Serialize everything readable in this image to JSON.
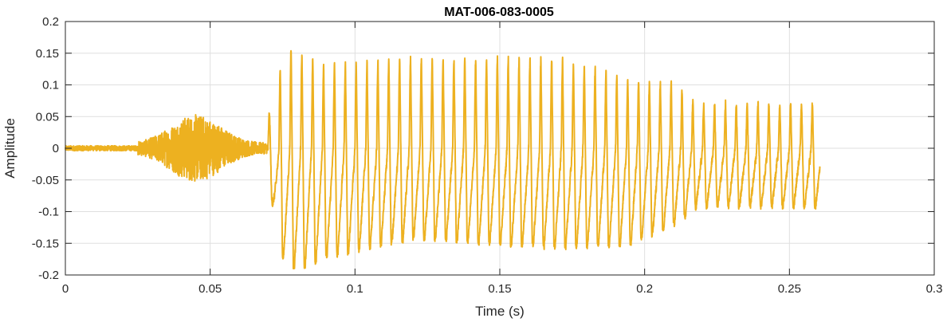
{
  "chart_data": {
    "type": "line",
    "title": "MAT-006-083-0005",
    "xlabel": "Time (s)",
    "ylabel": "Amplitude",
    "xlim": [
      0,
      0.3
    ],
    "ylim": [
      -0.2,
      0.2
    ],
    "xticks": [
      0,
      0.05,
      0.1,
      0.15,
      0.2,
      0.25,
      0.3
    ],
    "xtick_labels": [
      "0",
      "0.05",
      "0.1",
      "0.15",
      "0.2",
      "0.25",
      "0.3"
    ],
    "yticks": [
      -0.2,
      -0.15,
      -0.1,
      -0.05,
      0,
      0.05,
      0.1,
      0.15,
      0.2
    ],
    "ytick_labels": [
      "-0.2",
      "-0.15",
      "-0.1",
      "-0.05",
      "0",
      "0.05",
      "0.1",
      "0.15",
      "0.2"
    ],
    "grid": true,
    "line_color": "#EDB120",
    "series": [
      {
        "signal_end_time": 0.2605,
        "segments": [
          {
            "start": 0.0,
            "end": 0.025,
            "kind": "noise",
            "amp": 0.004
          },
          {
            "start": 0.025,
            "end": 0.07,
            "kind": "noise_burst",
            "amp": 0.035,
            "peak_time": 0.045
          },
          {
            "start": 0.07,
            "end": 0.2605,
            "kind": "voiced",
            "period": 0.00375,
            "envelope_top": [
              [
                0.07,
                0.05
              ],
              [
                0.075,
                0.14
              ],
              [
                0.077,
                0.16
              ],
              [
                0.09,
                0.13
              ],
              [
                0.12,
                0.14
              ],
              [
                0.17,
                0.14
              ],
              [
                0.195,
                0.11
              ],
              [
                0.21,
                0.1
              ],
              [
                0.216,
                0.08
              ],
              [
                0.218,
                0.07
              ],
              [
                0.26,
                0.07
              ]
            ],
            "envelope_bottom": [
              [
                0.07,
                -0.05
              ],
              [
                0.075,
                -0.17
              ],
              [
                0.08,
                -0.19
              ],
              [
                0.09,
                -0.17
              ],
              [
                0.12,
                -0.14
              ],
              [
                0.17,
                -0.155
              ],
              [
                0.195,
                -0.15
              ],
              [
                0.21,
                -0.12
              ],
              [
                0.216,
                -0.1
              ],
              [
                0.218,
                -0.09
              ],
              [
                0.26,
                -0.09
              ]
            ]
          }
        ]
      }
    ]
  }
}
